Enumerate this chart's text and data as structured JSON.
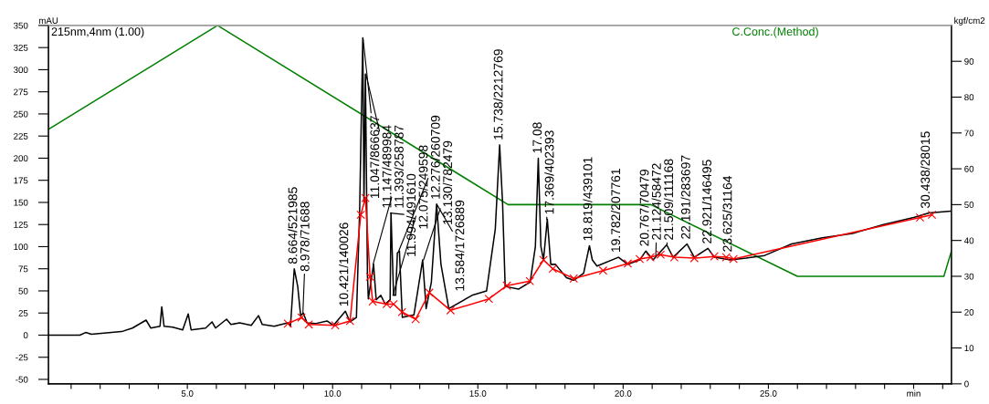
{
  "chart_data": {
    "type": "line",
    "xlabel": null,
    "ylabel": "mAU",
    "y2label": "kgf/cm2",
    "xlim": [
      0.22,
      31.3
    ],
    "ylim": [
      -55,
      350
    ],
    "y2lim": [
      0,
      100
    ],
    "xticks": [
      {
        "value": 1,
        "label": null
      },
      {
        "value": 2,
        "label": null
      },
      {
        "value": 3,
        "label": null
      },
      {
        "value": 4,
        "label": null
      },
      {
        "value": 5,
        "label": "5.0"
      },
      {
        "value": 6,
        "label": null
      },
      {
        "value": 7,
        "label": null
      },
      {
        "value": 8,
        "label": null
      },
      {
        "value": 9,
        "label": null
      },
      {
        "value": 10,
        "label": "10.0"
      },
      {
        "value": 11,
        "label": null
      },
      {
        "value": 12,
        "label": null
      },
      {
        "value": 13,
        "label": null
      },
      {
        "value": 14,
        "label": null
      },
      {
        "value": 15,
        "label": "15.0"
      },
      {
        "value": 16,
        "label": null
      },
      {
        "value": 17,
        "label": null
      },
      {
        "value": 18,
        "label": null
      },
      {
        "value": 19,
        "label": null
      },
      {
        "value": 20,
        "label": "20.0"
      },
      {
        "value": 21,
        "label": null
      },
      {
        "value": 22,
        "label": null
      },
      {
        "value": 23,
        "label": null
      },
      {
        "value": 24,
        "label": null
      },
      {
        "value": 25,
        "label": "25.0"
      },
      {
        "value": 26,
        "label": null
      },
      {
        "value": 27,
        "label": null
      },
      {
        "value": 28,
        "label": null
      },
      {
        "value": 29,
        "label": null
      },
      {
        "value": 30,
        "label": "min"
      },
      {
        "value": 31,
        "label": null
      }
    ],
    "yticks": [
      -50,
      -25,
      0,
      25,
      50,
      75,
      100,
      125,
      150,
      175,
      200,
      225,
      250,
      275,
      300,
      325,
      350
    ],
    "y2ticks": [
      0,
      10,
      20,
      30,
      40,
      50,
      60,
      70,
      80,
      90
    ],
    "grid": false,
    "legend": false,
    "series": [
      {
        "name": "215nm,4nm (1.00)",
        "color": "#000000",
        "marker": "none",
        "x": [
          0.22,
          1.3,
          1.5,
          1.7,
          2.74,
          3.11,
          3.58,
          3.74,
          4.06,
          4.12,
          4.2,
          4.5,
          4.84,
          5.03,
          5.13,
          5.63,
          5.85,
          5.97,
          6.35,
          6.5,
          6.8,
          7.2,
          7.45,
          7.58,
          7.99,
          8.46,
          8.55,
          8.68,
          8.8,
          8.9,
          8.99,
          9.12,
          9.4,
          9.81,
          10.03,
          10.44,
          10.6,
          10.82,
          10.93,
          11.04,
          11.08,
          11.13,
          11.2,
          11.23,
          11.41,
          11.5,
          11.66,
          11.81,
          11.98,
          12.01,
          12.1,
          12.17,
          12.23,
          12.3,
          12.4,
          12.8,
          13.1,
          13.22,
          13.4,
          13.58,
          13.73,
          14.0,
          14.8,
          15.3,
          15.6,
          15.75,
          15.85,
          15.94,
          16.4,
          16.8,
          16.98,
          17.08,
          17.17,
          17.26,
          17.39,
          17.51,
          17.67,
          18.05,
          18.3,
          18.64,
          18.84,
          18.94,
          19.1,
          19.84,
          20.16,
          20.57,
          20.78,
          21.03,
          21.5,
          21.72,
          22.2,
          22.45,
          22.92,
          23.14,
          23.7,
          24.23,
          24.87,
          25.8,
          26.86,
          27.9,
          28.96,
          30.0,
          30.53,
          31.26
        ],
        "values": [
          0,
          0,
          3,
          1,
          4,
          8,
          17,
          8,
          10,
          32,
          10,
          9,
          6,
          24,
          6,
          8,
          15,
          8,
          18,
          12,
          14,
          11,
          22,
          12,
          10,
          14,
          10,
          75,
          55,
          22,
          25,
          14,
          13,
          16,
          11,
          27,
          15,
          20,
          140,
          336,
          150,
          295,
          68,
          41,
          80,
          40,
          45,
          35,
          40,
          138,
          45,
          45,
          93,
          95,
          20,
          23,
          85,
          30,
          60,
          148,
          80,
          30,
          45,
          50,
          120,
          215,
          150,
          55,
          52,
          60,
          100,
          200,
          100,
          85,
          131,
          80,
          80,
          65,
          62,
          70,
          101,
          85,
          78,
          88,
          80,
          85,
          95,
          85,
          102,
          88,
          103,
          88,
          98,
          88,
          85,
          87,
          90,
          103,
          110,
          115,
          125,
          133,
          138,
          140
        ]
      },
      {
        "color": "#ff0000",
        "marker": "cross",
        "x": [
          8.46,
          8.93,
          9.18,
          10.09,
          10.6,
          10.97,
          11.13,
          11.29,
          11.38,
          11.86,
          12.1,
          12.39,
          12.86,
          13.33,
          14.06,
          15.38,
          16.0,
          16.79,
          17.26,
          17.58,
          18.3,
          19.31,
          20.16,
          20.57,
          20.94,
          21.29,
          21.76,
          22.45,
          23.14,
          23.55,
          23.8,
          30.22,
          30.63
        ],
        "values": [
          13,
          20,
          12,
          11,
          16,
          136,
          155,
          66,
          38,
          35,
          35,
          26,
          18,
          48,
          28,
          41,
          56,
          61,
          85,
          75,
          64,
          73,
          81,
          86,
          88,
          91,
          88,
          87,
          89,
          88,
          86,
          133,
          136
        ]
      },
      {
        "name": "C.Conc.(Method)",
        "color": "#008000",
        "marker": "none",
        "axis": "y2",
        "x": [
          0.22,
          6.04,
          16.04,
          20.95,
          26.0,
          31.04,
          31.3
        ],
        "values": [
          71,
          100,
          50,
          50,
          30,
          30,
          37
        ]
      }
    ],
    "annotations": [
      {
        "text": "8.664/521985",
        "x": 8.664,
        "y": 75
      },
      {
        "text": "8.978/71688",
        "x": 8.978,
        "y": 25
      },
      {
        "text": "10.421/140026",
        "x": 10.421,
        "y": 27
      },
      {
        "text": "11.047/866637",
        "x": 11.047,
        "y": 336
      },
      {
        "text": "11.147/489984",
        "x": 11.147,
        "y": 295
      },
      {
        "text": "11.393/258787",
        "x": 11.393,
        "y": 80
      },
      {
        "text": "11.994/491610",
        "x": 11.994,
        "y": 138
      },
      {
        "text": "12.075/249598",
        "x": 12.075,
        "y": 45
      },
      {
        "text": "12.276/260709",
        "x": 12.276,
        "y": 95
      },
      {
        "text": "13.130/782479",
        "x": 13.13,
        "y": 85
      },
      {
        "text": "13.584/1726889",
        "x": 13.584,
        "y": 148
      },
      {
        "text": "15.738/2212769",
        "x": 15.738,
        "y": 215
      },
      {
        "text": "17.08",
        "x": 17.08,
        "y": 200
      },
      {
        "text": "17.369/402393",
        "x": 17.369,
        "y": 131
      },
      {
        "text": "18.819/439101",
        "x": 18.819,
        "y": 101
      },
      {
        "text": "19.782/207761",
        "x": 19.782,
        "y": 88
      },
      {
        "text": "20.767/70479",
        "x": 20.767,
        "y": 95
      },
      {
        "text": "21.124/58472",
        "x": 21.124,
        "y": 90
      },
      {
        "text": "21.509/111168",
        "x": 21.509,
        "y": 102
      },
      {
        "text": "22.191/283697",
        "x": 22.191,
        "y": 103
      },
      {
        "text": "22.921/146495",
        "x": 22.921,
        "y": 98
      },
      {
        "text": "23.625/31164",
        "x": 23.625,
        "y": 88
      },
      {
        "text": "30.438/28015",
        "x": 30.438,
        "y": 135
      }
    ]
  }
}
